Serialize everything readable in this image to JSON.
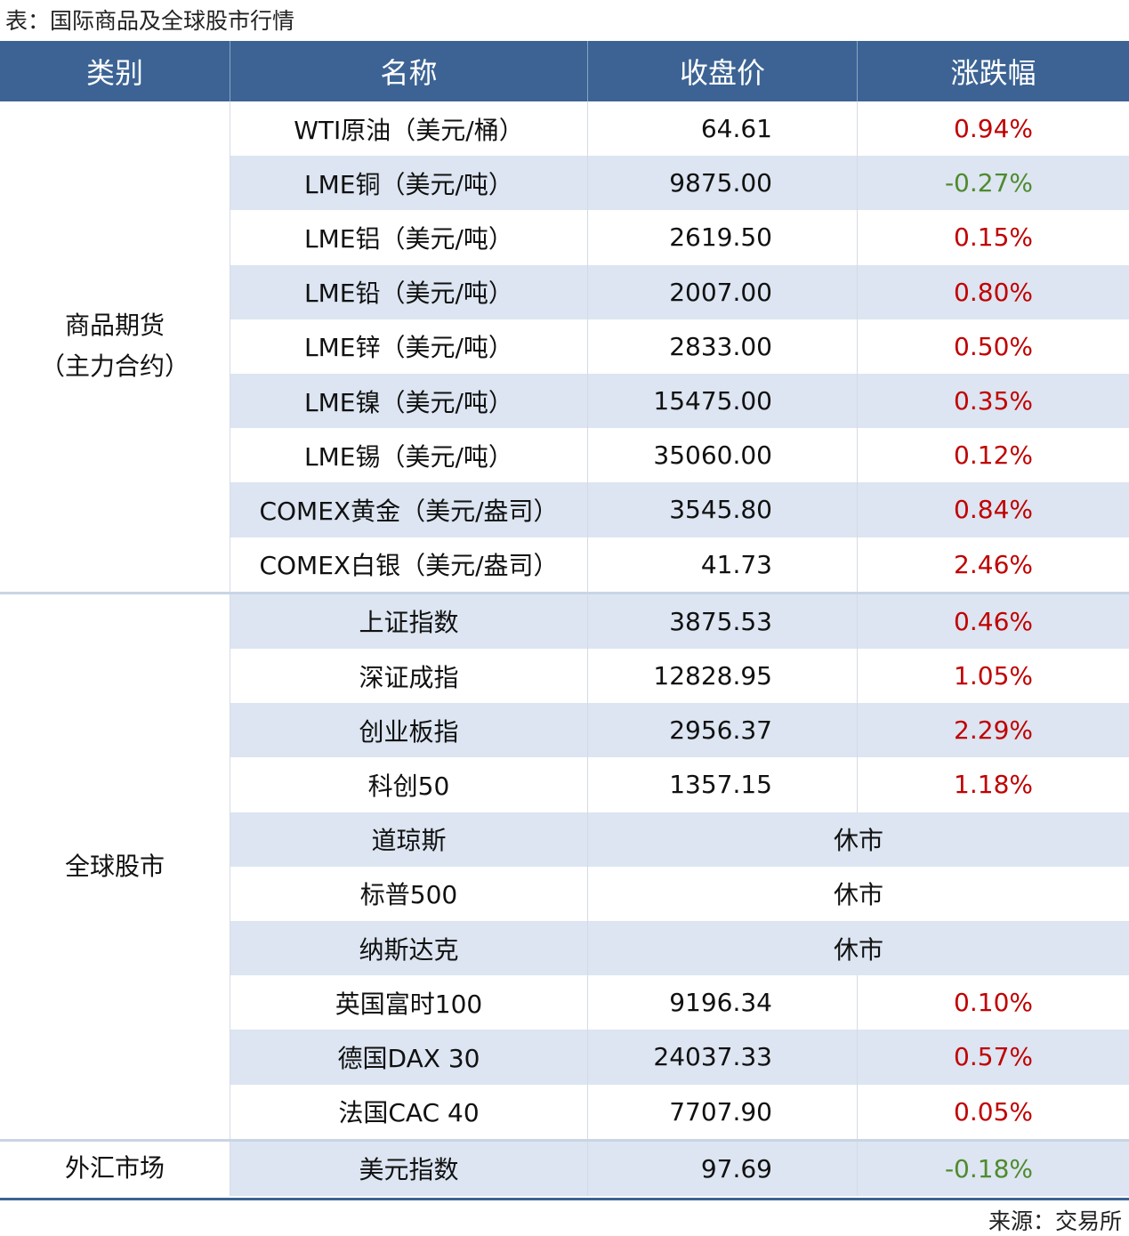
{
  "title": "表：国际商品及全球股市行情",
  "table": {
    "header": [
      "类别",
      "名称",
      "收盘价",
      "涨跌幅"
    ],
    "groups": [
      {
        "category": "商品期货\n（主力合约）",
        "rows": [
          {
            "name": "WTI原油（美元/桶）",
            "close": "64.61",
            "change": "0.94%"
          },
          {
            "name": "LME铜（美元/吨）",
            "close": "9875.00",
            "change": "-0.27%"
          },
          {
            "name": "LME铝（美元/吨）",
            "close": "2619.50",
            "change": "0.15%"
          },
          {
            "name": "LME铅（美元/吨）",
            "close": "2007.00",
            "change": "0.80%"
          },
          {
            "name": "LME锌（美元/吨）",
            "close": "2833.00",
            "change": "0.50%"
          },
          {
            "name": "LME镍（美元/吨）",
            "close": "15475.00",
            "change": "0.35%"
          },
          {
            "name": "LME锡（美元/吨）",
            "close": "35060.00",
            "change": "0.12%"
          },
          {
            "name": "COMEX黄金（美元/盎司）",
            "close": "3545.80",
            "change": "0.84%"
          },
          {
            "name": "COMEX白银（美元/盎司）",
            "close": "41.73",
            "change": "2.46%"
          }
        ]
      },
      {
        "category": "全球股市",
        "rows": [
          {
            "name": "上证指数",
            "close": "3875.53",
            "change": "0.46%"
          },
          {
            "name": "深证成指",
            "close": "12828.95",
            "change": "1.05%"
          },
          {
            "name": "创业板指",
            "close": "2956.37",
            "change": "2.29%"
          },
          {
            "name": "科创50",
            "close": "1357.15",
            "change": "1.18%"
          },
          {
            "name": "道琼斯",
            "status": "休市"
          },
          {
            "name": "标普500",
            "status": "休市"
          },
          {
            "name": "纳斯达克",
            "status": "休市"
          },
          {
            "name": "英国富时100",
            "close": "9196.34",
            "change": "0.10%"
          },
          {
            "name": "德国DAX 30",
            "close": "24037.33",
            "change": "0.57%"
          },
          {
            "name": "法国CAC 40",
            "close": "7707.90",
            "change": "0.05%"
          }
        ]
      },
      {
        "category": "外汇市场",
        "rows": [
          {
            "name": "美元指数",
            "close": "97.69",
            "change": "-0.18%"
          }
        ]
      }
    ]
  },
  "source": "来源：交易所"
}
